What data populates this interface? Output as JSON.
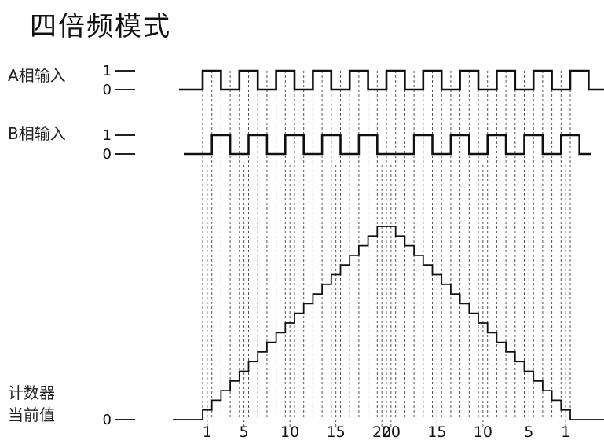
{
  "title": "四倍频模式",
  "signals": {
    "a_label": "A相输入",
    "b_label": "B相输入",
    "counter_label_line1": "计数器",
    "counter_label_line2": "当前值"
  },
  "levels": {
    "high": "1",
    "low": "0"
  },
  "counter_zero": "0",
  "waveform": {
    "a_pulses": 11,
    "b_pulses_before_gap": 5,
    "b_pulses_after_gap": 5,
    "counter_peak": 20
  },
  "bottom_ticks": [
    "1",
    "5",
    "10",
    "15",
    "20",
    "20",
    "15",
    "10",
    "5",
    "1"
  ]
}
